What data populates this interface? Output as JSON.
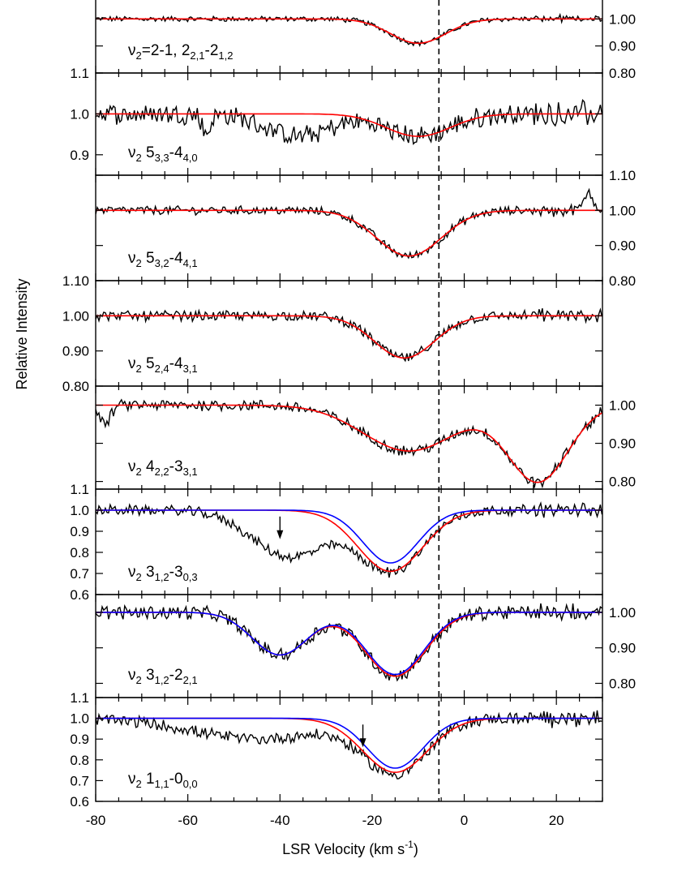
{
  "figure": {
    "ylabel": "Relative Intensity",
    "xlabel": "LSR Velocity (km s",
    "xlabel_sup": "-1",
    "xlabel_close": ")",
    "vline_x": -5.5,
    "xlim": [
      -80,
      30
    ],
    "xticks": [
      "-80",
      "-60",
      "-40",
      "-20",
      "0",
      "20"
    ],
    "xtick_values": [
      -80,
      -60,
      -40,
      -20,
      0,
      20
    ]
  },
  "colors": {
    "data": "#000000",
    "fit_red": "#ff0000",
    "fit_blue": "#0000ff"
  },
  "chart_data": [
    {
      "type": "line",
      "title": "ν2=2-1, 2(2,1)-2(1,2)",
      "label": {
        "pre": "ν",
        "sub0": "2",
        "mid": "=2-1, 2",
        "sub1": "2,1",
        "dash": "-2",
        "sub2": "1,2"
      },
      "ylim": [
        0.8,
        1.1
      ],
      "ticks_left": [],
      "ticks_right": [
        "1.00",
        "0.90",
        "0.80"
      ],
      "ticks_right_values": [
        1.0,
        0.9,
        0.8
      ],
      "continuum": 1.0,
      "components": [
        {
          "v": -10,
          "depth": 0.09,
          "sigma": 6
        }
      ],
      "fit_red": true,
      "fit_blue": false,
      "noise": 0.004,
      "extra_features": []
    },
    {
      "type": "line",
      "title": "ν2 5(3,3)-4(4,0)",
      "label": {
        "pre": "ν",
        "sub0": "2",
        "mid": " 5",
        "sub1": "3,3",
        "dash": "-4",
        "sub2": "4,0"
      },
      "ylim": [
        0.85,
        1.1
      ],
      "ticks_left": [
        "1.1",
        "1.0",
        "0.9"
      ],
      "ticks_left_values": [
        1.1,
        1.0,
        0.9
      ],
      "ticks_right": [],
      "continuum": 1.0,
      "components": [
        {
          "v": -10,
          "depth": 0.055,
          "sigma": 7
        }
      ],
      "fit_red": true,
      "fit_blue": false,
      "noise": 0.01,
      "extra_features": [
        {
          "v": -36,
          "depth": 0.055,
          "sigma": 7
        },
        {
          "v": -56,
          "depth": 0.05,
          "sigma": 0.8
        }
      ]
    },
    {
      "type": "line",
      "title": "ν2 5(3,2)-4(4,1)",
      "label": {
        "pre": "ν",
        "sub0": "2",
        "mid": " 5",
        "sub1": "3,2",
        "dash": "-4",
        "sub2": "4,1"
      },
      "ylim": [
        0.8,
        1.1
      ],
      "ticks_left": [],
      "ticks_right": [
        "1.10",
        "1.00",
        "0.90",
        "0.80"
      ],
      "ticks_right_values": [
        1.1,
        1.0,
        0.9,
        0.8
      ],
      "continuum": 1.0,
      "components": [
        {
          "v": -12,
          "depth": 0.13,
          "sigma": 7
        }
      ],
      "fit_red": true,
      "fit_blue": false,
      "noise": 0.005,
      "extra_features": [
        {
          "v": 27,
          "depth": -0.05,
          "sigma": 1.0
        }
      ]
    },
    {
      "type": "line",
      "title": "ν2 5(2,4)-4(3,1)",
      "label": {
        "pre": "ν",
        "sub0": "2",
        "mid": " 5",
        "sub1": "2,4",
        "dash": "-4",
        "sub2": "3,1"
      },
      "ylim": [
        0.8,
        1.1
      ],
      "ticks_left": [
        "1.10",
        "1.00",
        "0.90",
        "0.80"
      ],
      "ticks_left_values": [
        1.1,
        1.0,
        0.9,
        0.8
      ],
      "ticks_right": [],
      "continuum": 1.0,
      "components": [
        {
          "v": -13,
          "depth": 0.12,
          "sigma": 6.5
        }
      ],
      "fit_red": true,
      "fit_blue": false,
      "noise": 0.006,
      "extra_features": []
    },
    {
      "type": "line",
      "title": "ν2 4(2,2)-3(3,1)",
      "label": {
        "pre": "ν",
        "sub0": "2",
        "mid": " 4",
        "sub1": "2,2",
        "dash": "-3",
        "sub2": "3,1"
      },
      "ylim": [
        0.78,
        1.05
      ],
      "ticks_left": [],
      "ticks_right": [
        "1.00",
        "0.90",
        "0.80"
      ],
      "ticks_right_values": [
        1.0,
        0.9,
        0.8
      ],
      "continuum": 1.0,
      "components": [
        {
          "v": -12,
          "depth": 0.12,
          "sigma": 10
        },
        {
          "v": 16,
          "depth": 0.2,
          "sigma": 6.5
        }
      ],
      "fit_red": true,
      "fit_blue": false,
      "noise": 0.006,
      "extra_features": [
        {
          "v": -78,
          "depth": 0.05,
          "sigma": 1.2
        }
      ]
    },
    {
      "type": "line",
      "title": "ν2 3(1,2)-3(0,3)",
      "label": {
        "pre": "ν",
        "sub0": "2",
        "mid": " 3",
        "sub1": "1,2",
        "dash": "-3",
        "sub2": "0,3"
      },
      "ylim": [
        0.6,
        1.1
      ],
      "ticks_left": [
        "1.1",
        "1.0",
        "0.9",
        "0.8",
        "0.7",
        "0.6"
      ],
      "ticks_left_values": [
        1.1,
        1.0,
        0.9,
        0.8,
        0.7,
        0.6
      ],
      "ticks_right": [],
      "continuum": 1.0,
      "components": [
        {
          "v": -16,
          "depth": 0.29,
          "sigma": 7
        }
      ],
      "blue_components": [
        {
          "v": -16,
          "depth": 0.25,
          "sigma": 6
        }
      ],
      "fit_red": true,
      "fit_blue": true,
      "noise": 0.01,
      "extra_features": [
        {
          "v": -38,
          "depth": 0.22,
          "sigma": 8
        }
      ],
      "arrow_v": -40
    },
    {
      "type": "line",
      "title": "ν2 3(1,2)-2(2,1)",
      "label": {
        "pre": "ν",
        "sub0": "2",
        "mid": " 3",
        "sub1": "1,2",
        "dash": "-2",
        "sub2": "2,1"
      },
      "ylim": [
        0.76,
        1.05
      ],
      "ticks_left": [],
      "ticks_right": [
        "1.00",
        "0.90",
        "0.80"
      ],
      "ticks_right_values": [
        1.0,
        0.9,
        0.8
      ],
      "continuum": 1.0,
      "components": [
        {
          "v": -40,
          "depth": 0.12,
          "sigma": 6
        },
        {
          "v": -15,
          "depth": 0.18,
          "sigma": 6.5
        }
      ],
      "blue_components": [
        {
          "v": -40,
          "depth": 0.12,
          "sigma": 6
        },
        {
          "v": -15,
          "depth": 0.175,
          "sigma": 6.3
        }
      ],
      "fit_red": true,
      "fit_blue": true,
      "noise": 0.008,
      "extra_features": []
    },
    {
      "type": "line",
      "title": "ν2 1(1,1)-0(0,0)",
      "label": {
        "pre": "ν",
        "sub0": "2",
        "mid": " 1",
        "sub1": "1,1",
        "dash": "-0",
        "sub2": "0,0"
      },
      "ylim": [
        0.6,
        1.1
      ],
      "ticks_left": [
        "1.1",
        "1.0",
        "0.9",
        "0.8",
        "0.7",
        "0.6"
      ],
      "ticks_left_values": [
        1.1,
        1.0,
        0.9,
        0.8,
        0.7,
        0.6
      ],
      "ticks_right": [],
      "continuum": 1.0,
      "components": [
        {
          "v": -15,
          "depth": 0.26,
          "sigma": 7
        }
      ],
      "blue_components": [
        {
          "v": -15,
          "depth": 0.24,
          "sigma": 6
        }
      ],
      "fit_red": true,
      "fit_blue": true,
      "noise": 0.012,
      "extra_features": [
        {
          "v": -45,
          "depth": 0.1,
          "sigma": 14
        }
      ],
      "arrow_v": -22
    }
  ]
}
